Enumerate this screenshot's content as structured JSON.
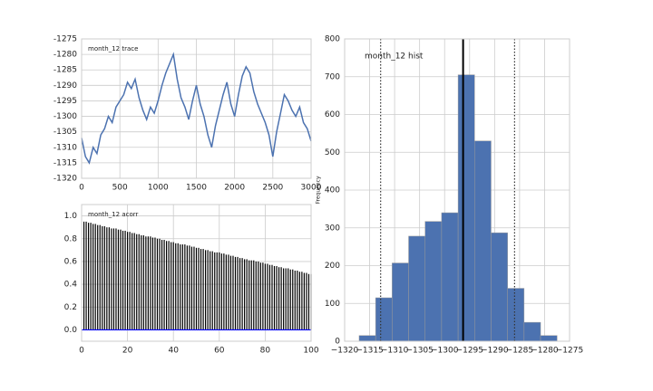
{
  "chart_data": [
    {
      "type": "line",
      "title": "month_12 trace",
      "color": "#4c72b0",
      "x": [
        0,
        50,
        100,
        150,
        200,
        250,
        300,
        350,
        400,
        450,
        500,
        550,
        600,
        650,
        700,
        750,
        800,
        850,
        900,
        950,
        1000,
        1050,
        1100,
        1150,
        1200,
        1250,
        1300,
        1350,
        1400,
        1450,
        1500,
        1550,
        1600,
        1650,
        1700,
        1750,
        1800,
        1850,
        1900,
        1950,
        2000,
        2050,
        2100,
        2150,
        2200,
        2250,
        2300,
        2350,
        2400,
        2450,
        2500,
        2550,
        2600,
        2650,
        2700,
        2750,
        2800,
        2850,
        2900,
        2950,
        3000
      ],
      "values": [
        -1307,
        -1313,
        -1315,
        -1310,
        -1312,
        -1306,
        -1304,
        -1300,
        -1302,
        -1297,
        -1295,
        -1293,
        -1289,
        -1291,
        -1288,
        -1294,
        -1298,
        -1301,
        -1297,
        -1299,
        -1295,
        -1290,
        -1286,
        -1283,
        -1280,
        -1288,
        -1294,
        -1297,
        -1301,
        -1295,
        -1290,
        -1296,
        -1300,
        -1306,
        -1310,
        -1303,
        -1298,
        -1293,
        -1289,
        -1296,
        -1300,
        -1293,
        -1287,
        -1284,
        -1286,
        -1292,
        -1296,
        -1299,
        -1302,
        -1306,
        -1313,
        -1305,
        -1299,
        -1293,
        -1295,
        -1298,
        -1300,
        -1297,
        -1302,
        -1304,
        -1308
      ],
      "xlim": [
        0,
        3000
      ],
      "xticks": [
        0,
        500,
        1000,
        1500,
        2000,
        2500,
        3000
      ],
      "ylim": [
        -1320,
        -1275
      ],
      "yticks": [
        -1320,
        -1315,
        -1310,
        -1305,
        -1300,
        -1295,
        -1290,
        -1285,
        -1280,
        -1275
      ],
      "grid": true
    },
    {
      "type": "bar",
      "title": "month_12 acorr",
      "color": "#000000",
      "hline": 0,
      "hline_color": "#0000ff",
      "x": [
        1,
        2,
        3,
        4,
        5,
        6,
        7,
        8,
        9,
        10,
        11,
        12,
        13,
        14,
        15,
        16,
        17,
        18,
        19,
        20,
        21,
        22,
        23,
        24,
        25,
        26,
        27,
        28,
        29,
        30,
        31,
        32,
        33,
        34,
        35,
        36,
        37,
        38,
        39,
        40,
        41,
        42,
        43,
        44,
        45,
        46,
        47,
        48,
        49,
        50,
        51,
        52,
        53,
        54,
        55,
        56,
        57,
        58,
        59,
        60,
        61,
        62,
        63,
        64,
        65,
        66,
        67,
        68,
        69,
        70,
        71,
        72,
        73,
        74,
        75,
        76,
        77,
        78,
        79,
        80,
        81,
        82,
        83,
        84,
        85,
        86,
        87,
        88,
        89,
        90,
        91,
        92,
        93,
        94,
        95,
        96,
        97,
        98,
        99,
        100
      ],
      "values": [
        0.95,
        0.95,
        0.94,
        0.94,
        0.93,
        0.93,
        0.92,
        0.92,
        0.91,
        0.91,
        0.9,
        0.9,
        0.89,
        0.89,
        0.89,
        0.88,
        0.88,
        0.87,
        0.87,
        0.86,
        0.86,
        0.85,
        0.85,
        0.84,
        0.84,
        0.83,
        0.83,
        0.82,
        0.82,
        0.82,
        0.81,
        0.81,
        0.8,
        0.8,
        0.79,
        0.79,
        0.78,
        0.78,
        0.77,
        0.77,
        0.76,
        0.76,
        0.75,
        0.75,
        0.75,
        0.74,
        0.74,
        0.73,
        0.73,
        0.72,
        0.72,
        0.71,
        0.71,
        0.7,
        0.7,
        0.69,
        0.69,
        0.68,
        0.68,
        0.68,
        0.67,
        0.67,
        0.66,
        0.66,
        0.65,
        0.65,
        0.64,
        0.64,
        0.63,
        0.63,
        0.62,
        0.62,
        0.61,
        0.61,
        0.61,
        0.6,
        0.6,
        0.59,
        0.59,
        0.58,
        0.58,
        0.57,
        0.57,
        0.56,
        0.56,
        0.55,
        0.55,
        0.54,
        0.54,
        0.54,
        0.53,
        0.53,
        0.52,
        0.52,
        0.51,
        0.51,
        0.5,
        0.5,
        0.49,
        0.49
      ],
      "xlim": [
        0,
        100
      ],
      "xticks": [
        0,
        20,
        40,
        60,
        80,
        100
      ],
      "ylim": [
        -0.1,
        1.1
      ],
      "yticks": [
        {
          "value": 0,
          "label": "0.0"
        },
        {
          "value": 0.2,
          "label": "0.2"
        },
        {
          "value": 0.4,
          "label": "0.4"
        },
        {
          "value": 0.6,
          "label": "0.6"
        },
        {
          "value": 0.8,
          "label": "0.8"
        },
        {
          "value": 1,
          "label": "1.0"
        }
      ],
      "grid": true
    },
    {
      "type": "histogram",
      "title": "month_12 hist",
      "ylabel": "Frequency",
      "color": "#4c72b0",
      "bins": [
        -1317.1,
        -1313.8,
        -1310.5,
        -1307.2,
        -1303.9,
        -1300.6,
        -1297.3,
        -1294.0,
        -1290.7,
        -1287.4,
        -1284.1,
        -1280.8,
        -1277.5
      ],
      "values": [
        15,
        115,
        207,
        278,
        317,
        340,
        705,
        530,
        287,
        140,
        50,
        15
      ],
      "mean": -1296.3,
      "interval": [
        -1312.8,
        -1286.0
      ],
      "xlim": [
        -1320,
        -1275
      ],
      "xticks": [
        {
          "value": -1320,
          "label": "−1320"
        },
        {
          "value": -1315,
          "label": "−1315"
        },
        {
          "value": -1310,
          "label": "−1310"
        },
        {
          "value": -1305,
          "label": "−1305"
        },
        {
          "value": -1300,
          "label": "−1300"
        },
        {
          "value": -1295,
          "label": "−1295"
        },
        {
          "value": -1290,
          "label": "−1290"
        },
        {
          "value": -1285,
          "label": "−1285"
        },
        {
          "value": -1280,
          "label": "−1280"
        },
        {
          "value": -1275,
          "label": "−1275"
        }
      ],
      "ylim": [
        0,
        800
      ],
      "yticks": [
        0,
        100,
        200,
        300,
        400,
        500,
        600,
        700,
        800
      ],
      "grid": true
    }
  ]
}
